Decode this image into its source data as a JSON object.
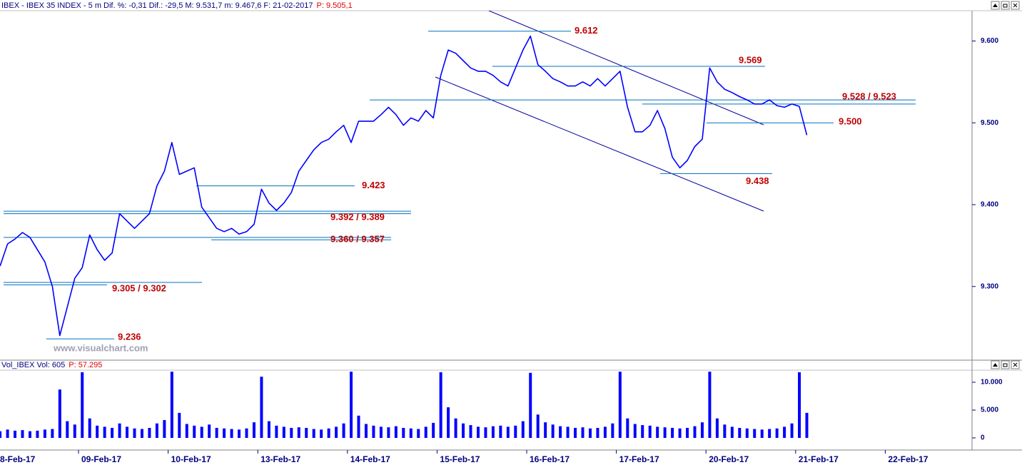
{
  "chart_data": {
    "type": "line",
    "header": "IBEX - IBEX 35 INDEX - 5 m  Dif. %: -0,31  Dif.: -29,5  M: 9.531,7  m: 9.467,6  F: 21-02-2017",
    "header_price": "P: 9.505,1",
    "volume_header": "Vol_IBEX Vol: 605",
    "volume_header_price": "P: 57.295",
    "watermark": "www.visualchart.com",
    "color": "#0000ff",
    "level_color": "#0070c0",
    "label_color": "#c00000",
    "ylim": [
      9210,
      9637
    ],
    "yticks": [
      {
        "value": 9300,
        "label": "9.300"
      },
      {
        "value": 9400,
        "label": "9.400"
      },
      {
        "value": 9500,
        "label": "9.500"
      },
      {
        "value": 9600,
        "label": "9.600"
      }
    ],
    "volume": {
      "ylim": [
        -2050,
        12050
      ],
      "yticks": [
        0,
        {
          "value": 5000,
          "label": "5.000"
        },
        {
          "value": 10000,
          "label": "10.000"
        }
      ]
    },
    "days": [
      {
        "label": "8-Feb-17",
        "prices": [
          9325,
          9352,
          9358,
          9366,
          9360,
          9345,
          9330,
          9300,
          9240,
          9275,
          9310
        ],
        "volumes": [
          1200,
          1500,
          1300,
          1400,
          1200,
          1300,
          1500,
          1600,
          8700,
          3000,
          2400
        ]
      },
      {
        "label": "09-Feb-17",
        "prices": [
          9323,
          9363,
          9345,
          9332,
          9341,
          9389,
          9380,
          9371,
          9380,
          9389,
          9423,
          9441
        ],
        "volumes": [
          11800,
          3500,
          2200,
          2000,
          1800,
          2600,
          2000,
          1700,
          1600,
          1800,
          2600,
          3200
        ]
      },
      {
        "label": "10-Feb-17",
        "prices": [
          9476,
          9437,
          9441,
          9445,
          9397,
          9384,
          9371,
          9367,
          9371,
          9364,
          9367,
          9376
        ],
        "volumes": [
          11900,
          4500,
          2500,
          2200,
          2000,
          2400,
          1800,
          1700,
          1600,
          1500,
          1700,
          2800
        ]
      },
      {
        "label": "13-Feb-17",
        "prices": [
          9419,
          9402,
          9393,
          9402,
          9415,
          9441,
          9454,
          9467,
          9476,
          9480,
          9489,
          9497
        ],
        "volumes": [
          11000,
          3000,
          2200,
          2000,
          1800,
          1900,
          1800,
          1600,
          1500,
          1700,
          2000,
          2600
        ]
      },
      {
        "label": "14-Feb-17",
        "prices": [
          9476,
          9502,
          9502,
          9502,
          9510,
          9519,
          9510,
          9497,
          9506,
          9502,
          9515,
          9506
        ],
        "volumes": [
          11900,
          4000,
          2500,
          2200,
          2000,
          1900,
          2100,
          1800,
          1700,
          1600,
          2000,
          2700
        ]
      },
      {
        "label": "15-Feb-17",
        "prices": [
          9558,
          9589,
          9585,
          9576,
          9567,
          9563,
          9563,
          9558,
          9550,
          9545,
          9567,
          9589
        ],
        "volumes": [
          11800,
          5500,
          3500,
          2600,
          2300,
          2000,
          1900,
          2100,
          2200,
          2000,
          2200,
          3000
        ]
      },
      {
        "label": "16-Feb-17",
        "prices": [
          9606,
          9571,
          9563,
          9554,
          9550,
          9545,
          9545,
          9550,
          9545,
          9554,
          9545,
          9554
        ],
        "volumes": [
          11700,
          4200,
          2800,
          2400,
          2100,
          2000,
          1800,
          1900,
          1700,
          1800,
          2000,
          2600
        ]
      },
      {
        "label": "17-Feb-17",
        "prices": [
          9563,
          9519,
          9489,
          9489,
          9497,
          9515,
          9493,
          9458,
          9445,
          9454,
          9471,
          9480
        ],
        "volumes": [
          11900,
          3500,
          2500,
          2300,
          2200,
          2000,
          1900,
          1800,
          1700,
          1800,
          2100,
          2800
        ]
      },
      {
        "label": "20-Feb-17",
        "prices": [
          9567,
          9550,
          9541,
          9537,
          9532,
          9528,
          9523,
          9523,
          9528,
          9521,
          9519,
          9523
        ],
        "volumes": [
          11900,
          3500,
          2400,
          2000,
          1800,
          1700,
          1600,
          1500,
          1600,
          1700,
          2000,
          2600
        ]
      },
      {
        "label": "21-Feb-17",
        "prices": [
          9520,
          9485
        ],
        "volumes": [
          11800,
          4500
        ]
      },
      {
        "label": "22-Feb-17",
        "prices": [],
        "volumes": []
      }
    ],
    "levels": [
      {
        "values": [
          9612
        ],
        "label": "9.612"
      },
      {
        "values": [
          9569
        ],
        "label": "9.569"
      },
      {
        "values": [
          9528,
          9523
        ],
        "label": "9.528 / 9.523"
      },
      {
        "values": [
          9500
        ],
        "label": "9.500"
      },
      {
        "values": [
          9438
        ],
        "label": "9.438"
      },
      {
        "values": [
          9423
        ],
        "label": "9.423"
      },
      {
        "values": [
          9392,
          9389
        ],
        "label": "9.392 / 9.389"
      },
      {
        "values": [
          9360,
          9357
        ],
        "label": "9.360 / 9.357"
      },
      {
        "values": [
          9305,
          9302
        ],
        "label": "9.305 / 9.302"
      },
      {
        "values": [
          9236
        ],
        "label": "9.236"
      }
    ]
  }
}
